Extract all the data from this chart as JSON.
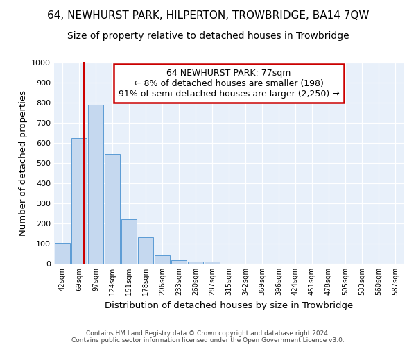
{
  "title": "64, NEWHURST PARK, HILPERTON, TROWBRIDGE, BA14 7QW",
  "subtitle": "Size of property relative to detached houses in Trowbridge",
  "xlabel": "Distribution of detached houses by size in Trowbridge",
  "ylabel": "Number of detached properties",
  "bin_labels": [
    "42sqm",
    "69sqm",
    "97sqm",
    "124sqm",
    "151sqm",
    "178sqm",
    "206sqm",
    "233sqm",
    "260sqm",
    "287sqm",
    "315sqm",
    "342sqm",
    "369sqm",
    "396sqm",
    "424sqm",
    "451sqm",
    "478sqm",
    "505sqm",
    "533sqm",
    "560sqm",
    "587sqm"
  ],
  "bar_heights": [
    103,
    625,
    790,
    545,
    220,
    132,
    42,
    18,
    10,
    10,
    0,
    0,
    0,
    0,
    0,
    0,
    0,
    0,
    0,
    0,
    0
  ],
  "bar_color": "#c5d8ef",
  "bar_edge_color": "#5b9bd5",
  "background_color": "#e8f0fa",
  "vline_x": 1.28,
  "vline_color": "#cc0000",
  "annotation_text": "64 NEWHURST PARK: 77sqm\n← 8% of detached houses are smaller (198)\n91% of semi-detached houses are larger (2,250) →",
  "annotation_box_color": "#cc0000",
  "ylim": [
    0,
    1000
  ],
  "yticks": [
    0,
    100,
    200,
    300,
    400,
    500,
    600,
    700,
    800,
    900,
    1000
  ],
  "footer_line1": "Contains HM Land Registry data © Crown copyright and database right 2024.",
  "footer_line2": "Contains public sector information licensed under the Open Government Licence v3.0.",
  "title_fontsize": 11,
  "subtitle_fontsize": 10,
  "xlabel_fontsize": 9.5,
  "ylabel_fontsize": 9.5,
  "annot_fontsize": 9
}
